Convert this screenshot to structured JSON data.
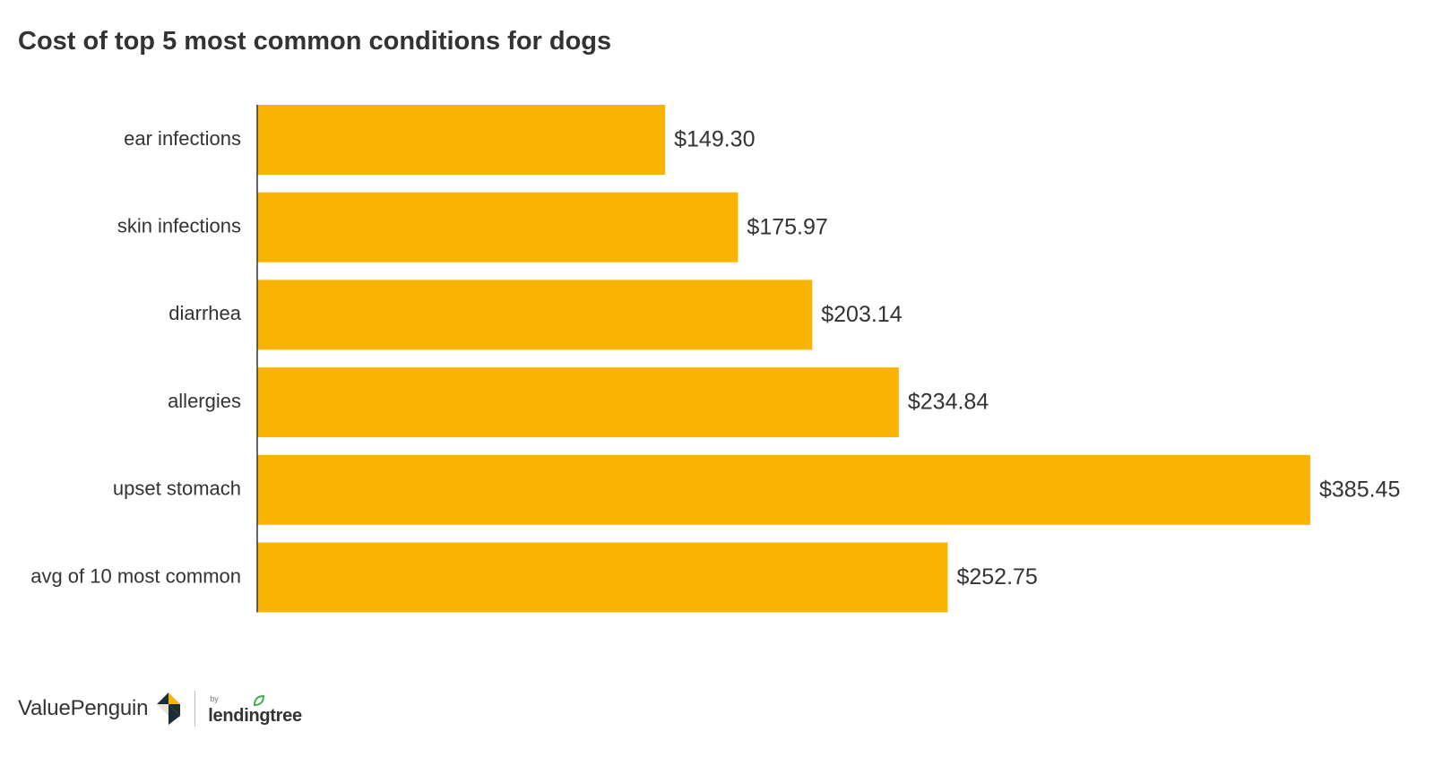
{
  "chart_data": {
    "type": "bar",
    "orientation": "horizontal",
    "title": "Cost of top 5 most common conditions for dogs",
    "categories": [
      "ear infections",
      "skin infections",
      "diarrhea",
      "allergies",
      "upset stomach",
      "avg of 10 most common"
    ],
    "values": [
      149.3,
      175.97,
      203.14,
      234.84,
      385.45,
      252.75
    ],
    "value_labels": [
      "$149.30",
      "$175.97",
      "$203.14",
      "$234.84",
      "$385.45",
      "$252.75"
    ],
    "xlabel": "",
    "ylabel": "",
    "xlim": [
      0,
      385.45
    ],
    "grid": false,
    "bar_color": "#F9B403",
    "axis_color": "#333333"
  },
  "footer": {
    "brand": "ValuePenguin",
    "by": "by",
    "partner": "lendingtree",
    "logo_colors": {
      "dark": "#1D2D35",
      "gold": "#F9B403",
      "light": "#E9E4D5",
      "leaf": "#3DAE49"
    }
  }
}
